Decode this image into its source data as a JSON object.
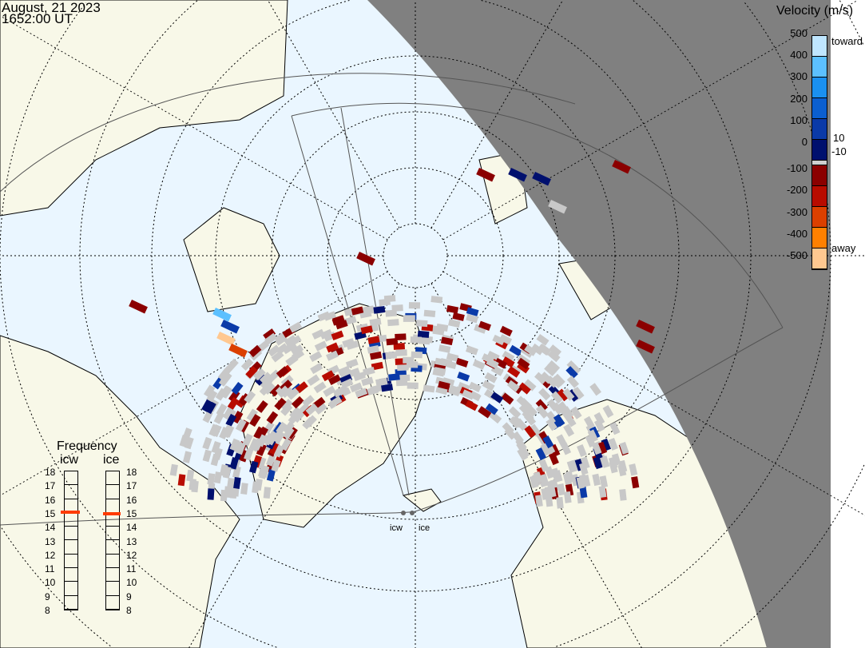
{
  "header": {
    "date": "August, 21 2023",
    "time": "1652:00 UT"
  },
  "velocity_scale": {
    "title": "Velocity (m/s)",
    "ticks": [
      "500",
      "400",
      "300",
      "200",
      "100",
      "0",
      "-100",
      "-200",
      "-300",
      "-400",
      "-500"
    ],
    "labels": {
      "top": "toward",
      "pos_min": "10",
      "neg_min": "-10",
      "bottom": "away"
    },
    "colors": [
      "#bfe6ff",
      "#5cc0ff",
      "#1a90f0",
      "#0b5fd0",
      "#0a3aa8",
      "#00106e",
      "#cfcfcf",
      "#8b0000",
      "#b80c00",
      "#db4000",
      "#ff8000",
      "#ffc890"
    ]
  },
  "frequency": {
    "title": "Frequency",
    "unit_range": [
      "18",
      "17",
      "16",
      "15",
      "14",
      "13",
      "12",
      "11",
      "10",
      "9",
      "8"
    ],
    "radars": [
      {
        "name": "icw",
        "value_mhz": 15.0
      },
      {
        "name": "ice",
        "value_mhz": 14.9
      }
    ]
  },
  "radar_sites": [
    {
      "name": "icw"
    },
    {
      "name": "ice"
    }
  ],
  "colors": {
    "ocean": "#eaf6ff",
    "land": "#f8f8e8",
    "night": "#808080",
    "ground_scatter": "#c8c8c8"
  }
}
